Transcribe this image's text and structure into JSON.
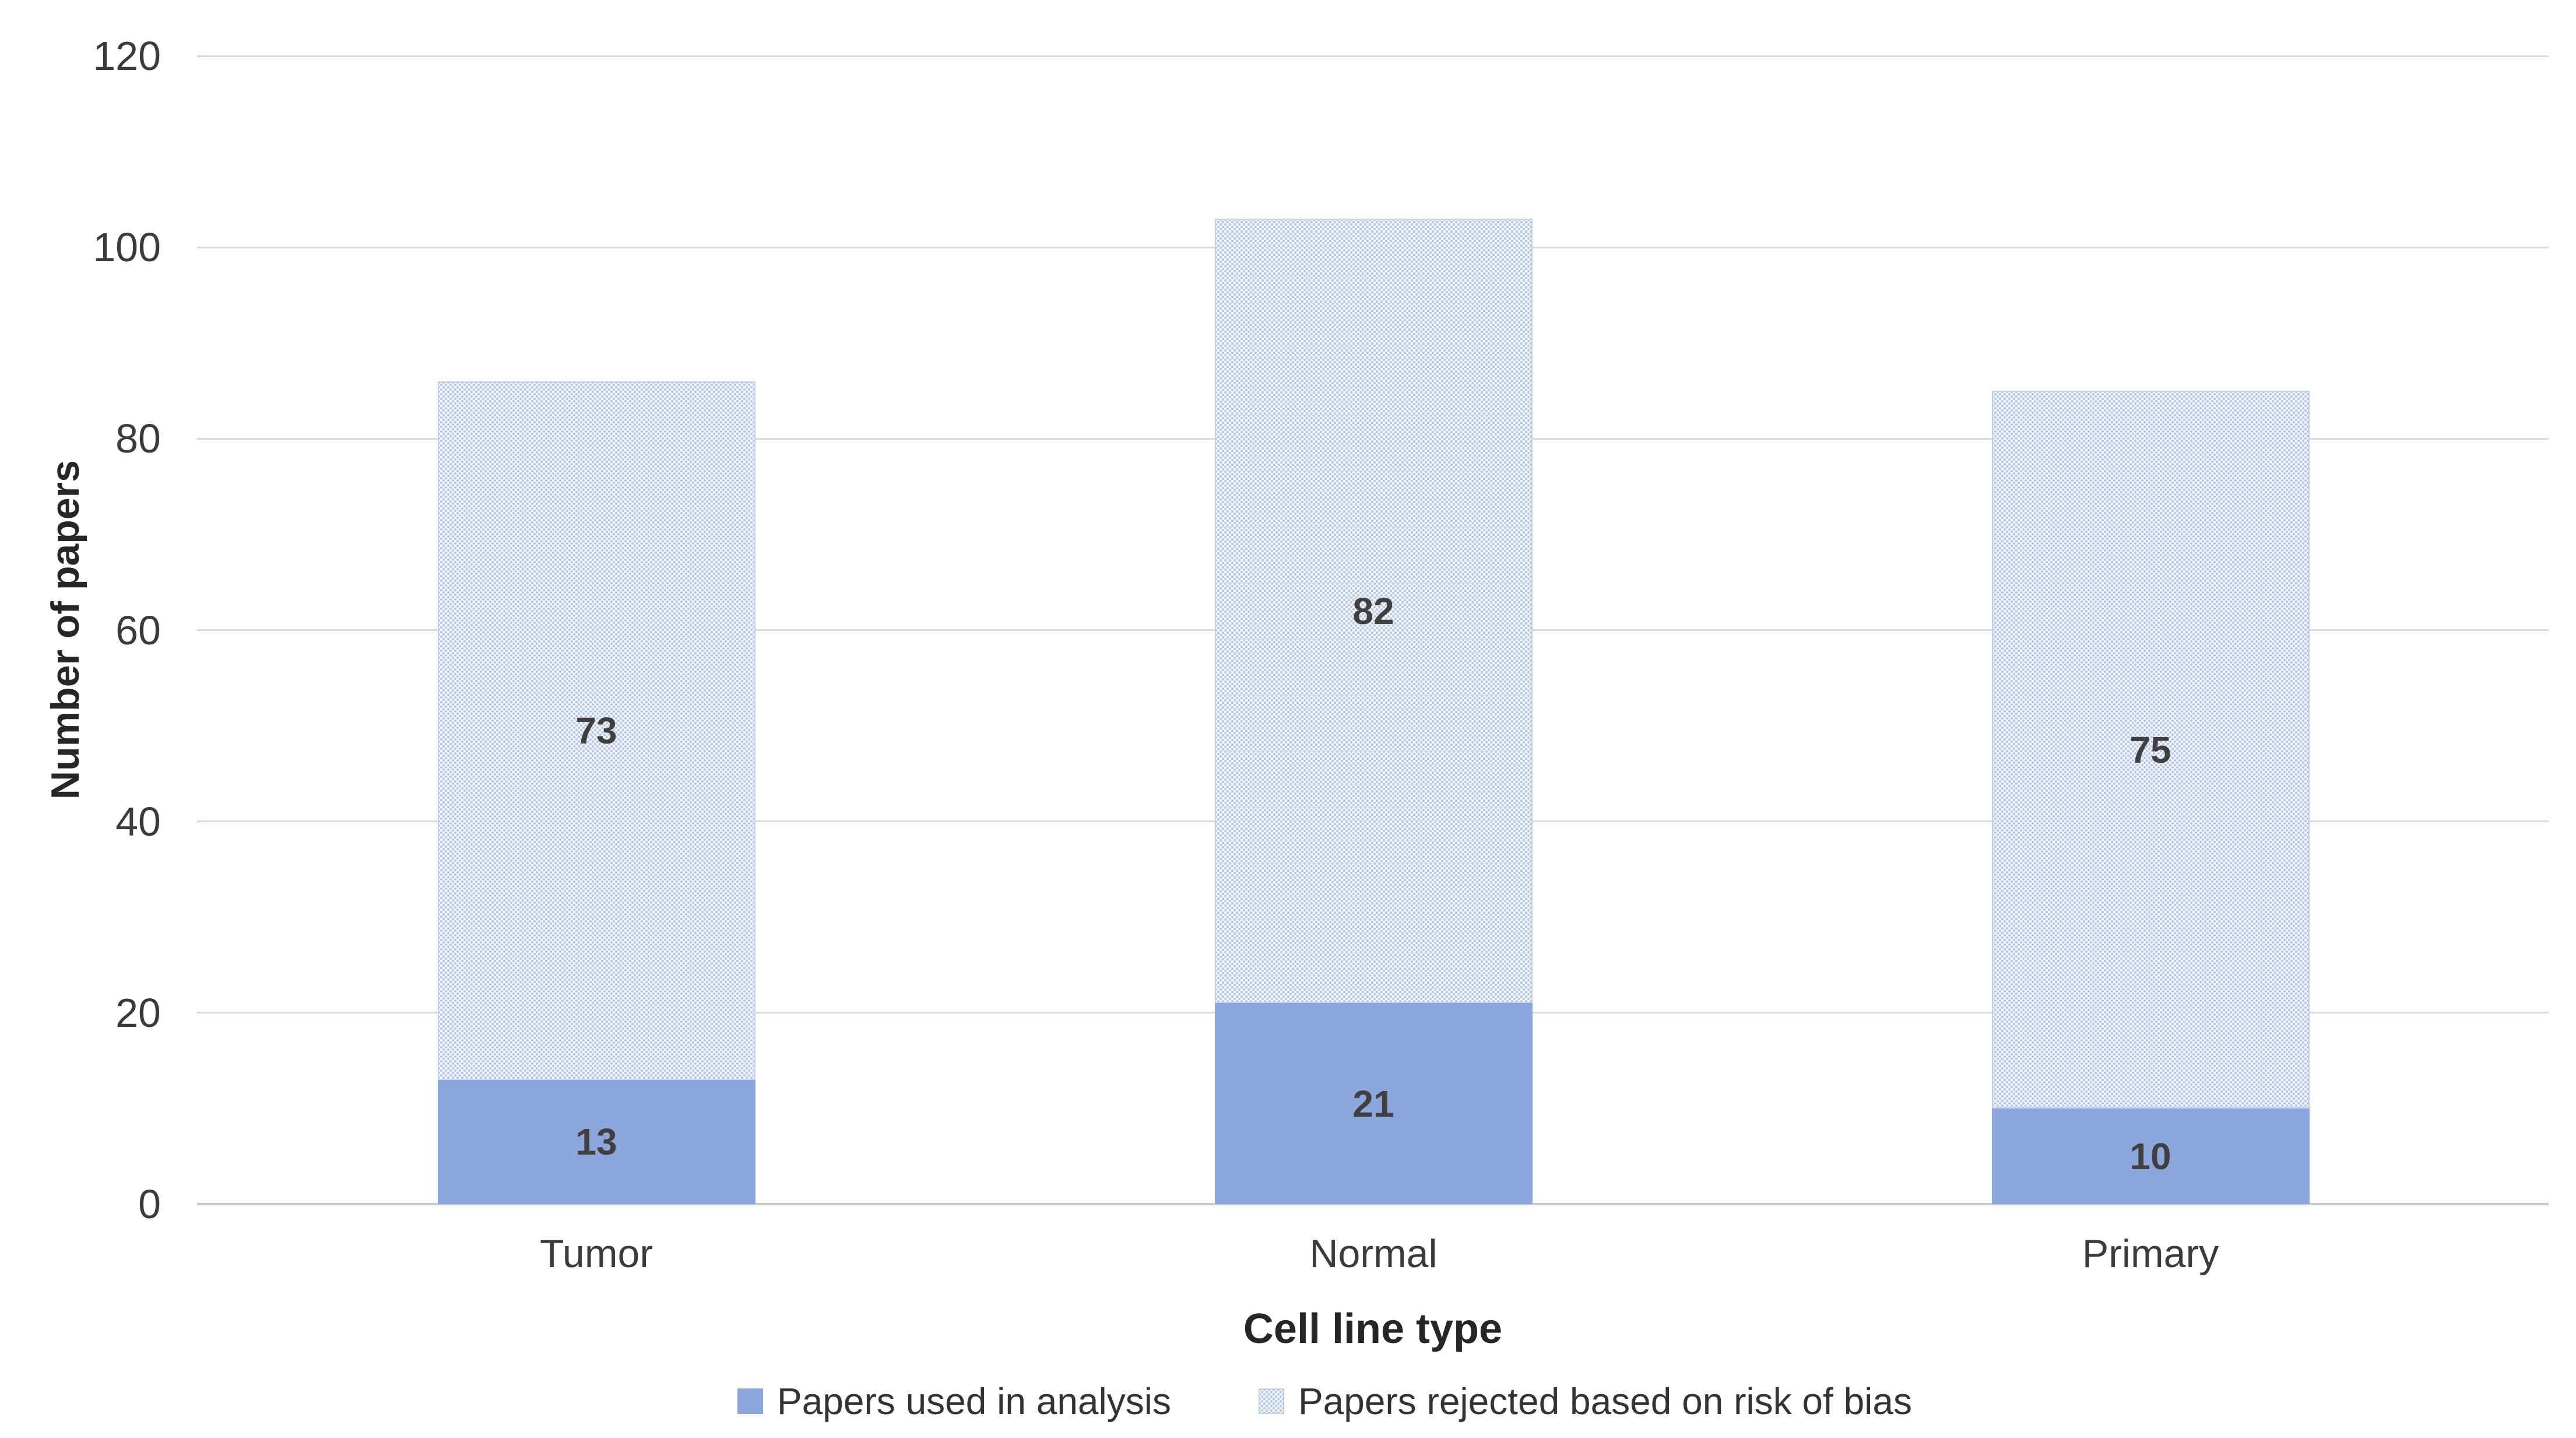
{
  "chart_data": {
    "type": "bar",
    "stacked": true,
    "categories": [
      "Tumor",
      "Normal",
      "Primary"
    ],
    "series": [
      {
        "name": "Papers used in analysis",
        "values": [
          13,
          21,
          10
        ],
        "fill": "solid",
        "color": "#8da7dc"
      },
      {
        "name": "Papers rejected based on risk of bias",
        "values": [
          73,
          82,
          75
        ],
        "fill": "dotted-pattern",
        "color": "#b7c8ea"
      }
    ],
    "totals": [
      86,
      103,
      85
    ],
    "xlabel": "Cell line type",
    "ylabel": "Number of papers",
    "ylim": [
      0,
      120
    ],
    "yticks": [
      0,
      20,
      40,
      60,
      80,
      100,
      120
    ],
    "grid": "horizontal",
    "legend_position": "bottom",
    "data_labels": "inside-center"
  },
  "colors": {
    "background": "#ffffff",
    "solid_series": "#8da7dc",
    "pattern_dot": "#b7c8ea",
    "gridline": "#d9d9d9",
    "axis_line": "#c9c9c9",
    "axis_text": "#3b3b3b",
    "data_label_text": "#404040",
    "title_text": "#262626"
  }
}
